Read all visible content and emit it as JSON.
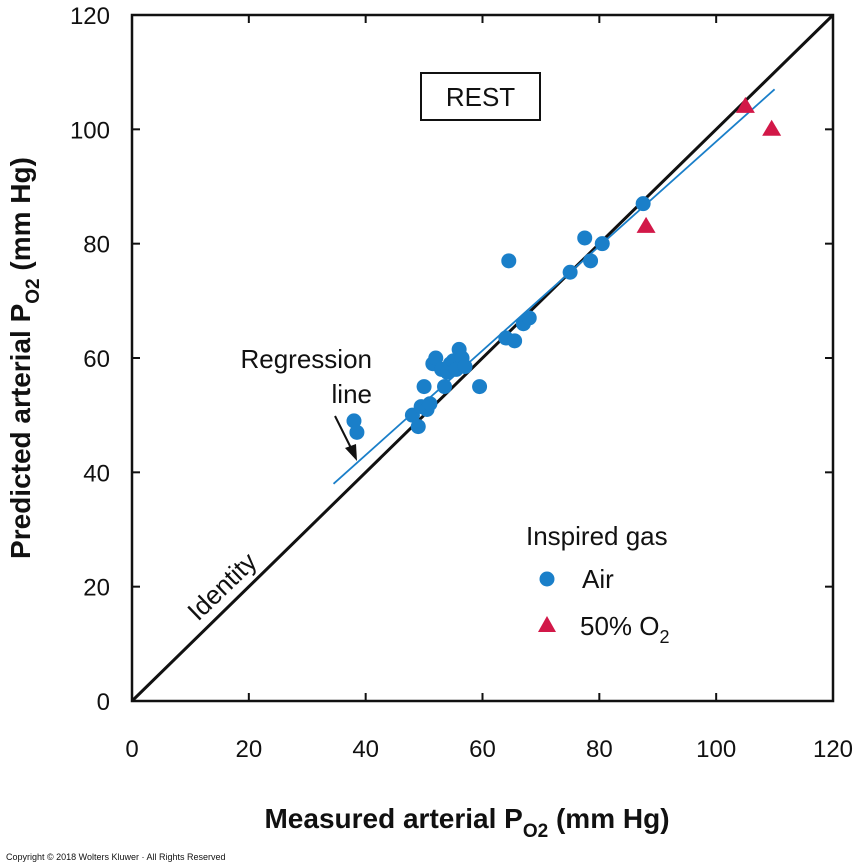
{
  "chart_data": {
    "type": "scatter",
    "title": "",
    "xlabel": "Measured arterial PO2 (mm Hg)",
    "ylabel": "Predicted arterial PO2 (mm Hg)",
    "xlabel_parts": {
      "main": "Measured arterial P",
      "sub": "O2",
      "unit": " (mm Hg)"
    },
    "ylabel_parts": {
      "main": "Predicted arterial P",
      "sub": "O2",
      "unit": " (mm Hg)"
    },
    "xlim": [
      0,
      120
    ],
    "ylim": [
      0,
      120
    ],
    "xticks": [
      0,
      20,
      40,
      60,
      80,
      100,
      120
    ],
    "yticks": [
      0,
      20,
      40,
      60,
      80,
      100,
      120
    ],
    "grid": false,
    "boxed_label": "REST",
    "legend": {
      "title": "Inspired gas",
      "placement": "bottom-right",
      "entries": [
        {
          "label": "Air",
          "marker": "circle",
          "color": "#1a7fc9"
        },
        {
          "label_main": "50% O",
          "label_sub": "2",
          "marker": "triangle",
          "color": "#d21848"
        }
      ]
    },
    "series": [
      {
        "name": "Air",
        "marker": "circle",
        "color": "#1a7fc9",
        "points": [
          [
            38,
            49
          ],
          [
            38.5,
            47
          ],
          [
            48,
            50
          ],
          [
            49,
            48
          ],
          [
            49.5,
            51.5
          ],
          [
            50,
            55
          ],
          [
            50.5,
            51
          ],
          [
            51,
            52
          ],
          [
            51.5,
            59
          ],
          [
            52,
            60
          ],
          [
            53,
            58
          ],
          [
            53.5,
            55
          ],
          [
            54,
            57.5
          ],
          [
            54.5,
            59
          ],
          [
            55,
            59.5
          ],
          [
            55.5,
            58
          ],
          [
            56,
            61.5
          ],
          [
            56.5,
            60
          ],
          [
            57,
            58.5
          ],
          [
            59.5,
            55
          ],
          [
            64,
            63.5
          ],
          [
            64.5,
            77
          ],
          [
            65.5,
            63
          ],
          [
            67,
            66
          ],
          [
            68,
            67
          ],
          [
            75,
            75
          ],
          [
            77.5,
            81
          ],
          [
            78.5,
            77
          ],
          [
            80.5,
            80
          ],
          [
            87.5,
            87
          ]
        ]
      },
      {
        "name": "50% O2",
        "marker": "triangle",
        "color": "#d21848",
        "points": [
          [
            88,
            83
          ],
          [
            105,
            104
          ],
          [
            109.5,
            100
          ]
        ]
      }
    ],
    "lines": [
      {
        "name": "Identity",
        "color": "#111111",
        "points": [
          [
            0,
            0
          ],
          [
            120,
            120
          ]
        ]
      },
      {
        "name": "Regression line",
        "color": "#1a7fc9",
        "points": [
          [
            34.5,
            38
          ],
          [
            110,
            107
          ]
        ]
      }
    ],
    "annotations": {
      "identity_label": "Identity",
      "regression_label_line1": "Regression",
      "regression_label_line2": "line"
    }
  },
  "copyright": "Copyright © 2018 Wolters Kluwer · All Rights Reserved"
}
